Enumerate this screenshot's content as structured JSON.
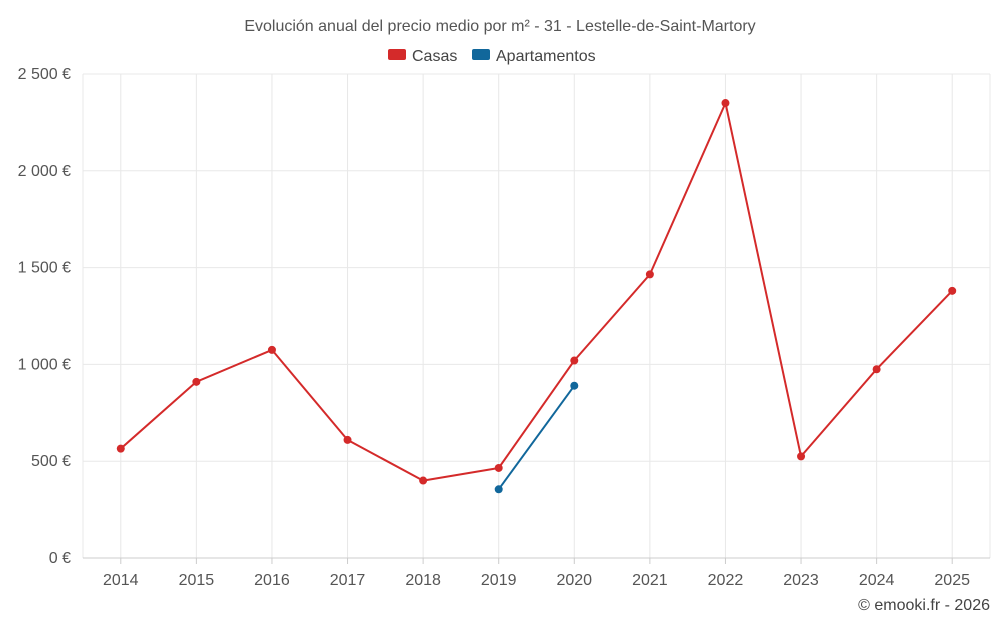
{
  "chart_data": {
    "type": "line",
    "title": "Evolución anual del precio medio por m² - 31 - Lestelle-de-Saint-Martory",
    "categories": [
      "2014",
      "2015",
      "2016",
      "2017",
      "2018",
      "2019",
      "2020",
      "2021",
      "2022",
      "2023",
      "2024",
      "2025"
    ],
    "series": [
      {
        "name": "Casas",
        "color": "#d42a2a",
        "values": [
          565,
          910,
          1075,
          610,
          400,
          465,
          1020,
          1465,
          2350,
          525,
          975,
          1380
        ]
      },
      {
        "name": "Apartamentos",
        "color": "#11679b",
        "values": [
          null,
          null,
          null,
          null,
          null,
          355,
          890,
          null,
          null,
          null,
          null,
          null
        ]
      }
    ],
    "ylim": [
      0,
      2500
    ],
    "yticks": [
      0,
      500,
      1000,
      1500,
      2000,
      2500
    ],
    "ytick_labels": [
      "0 €",
      "500 €",
      "1 000 €",
      "1 500 €",
      "2 000 €",
      "2 500 €"
    ],
    "xlabel": "",
    "ylabel": "",
    "legend_position": "top-center",
    "grid": true
  },
  "credit": "© emooki.fr - 2026"
}
